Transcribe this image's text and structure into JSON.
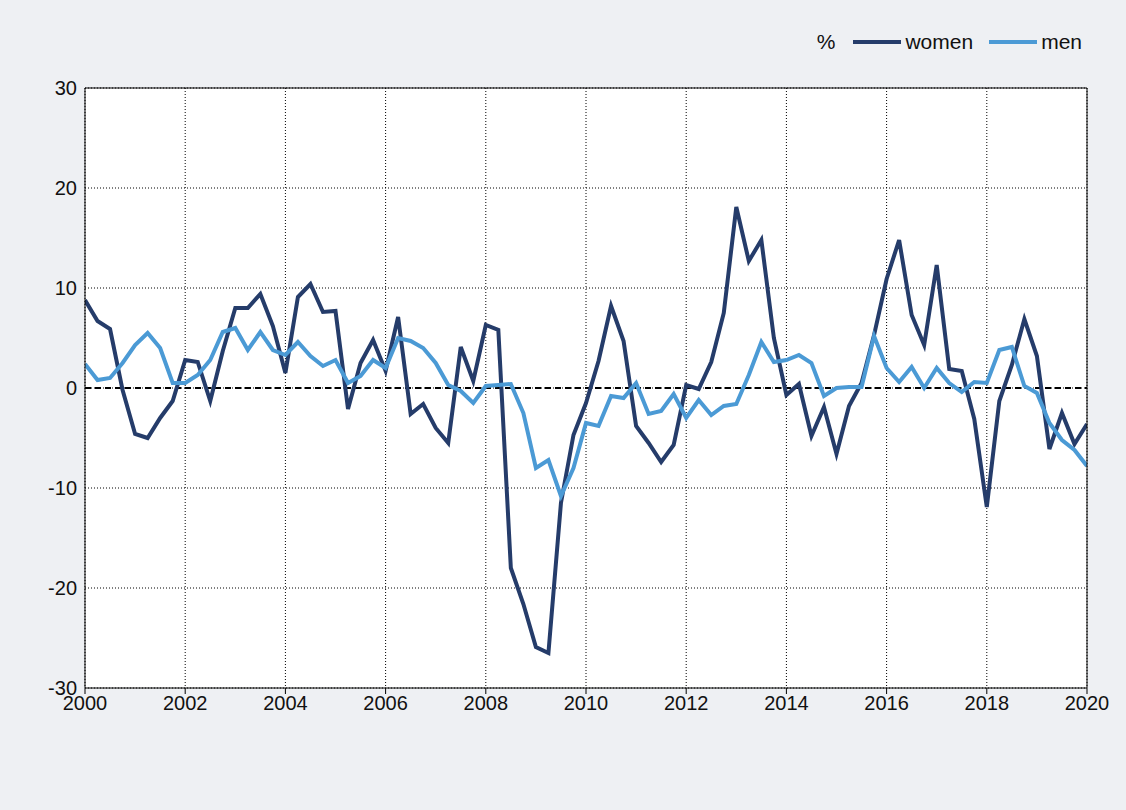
{
  "chart_data": {
    "type": "line",
    "ylabel": "%",
    "legend": "top-right",
    "grid": true,
    "x": [
      2000,
      2000.25,
      2000.5,
      2000.75,
      2001,
      2001.25,
      2001.5,
      2001.75,
      2002,
      2002.25,
      2002.5,
      2002.75,
      2003,
      2003.25,
      2003.5,
      2003.75,
      2004,
      2004.25,
      2004.5,
      2004.75,
      2005,
      2005.25,
      2005.5,
      2005.75,
      2006,
      2006.25,
      2006.5,
      2006.75,
      2007,
      2007.25,
      2007.5,
      2007.75,
      2008,
      2008.25,
      2008.5,
      2008.75,
      2009,
      2009.25,
      2009.5,
      2009.75,
      2010,
      2010.25,
      2010.5,
      2010.75,
      2011,
      2011.25,
      2011.5,
      2011.75,
      2012,
      2012.25,
      2012.5,
      2012.75,
      2013,
      2013.25,
      2013.5,
      2013.75,
      2014,
      2014.25,
      2014.5,
      2014.75,
      2015,
      2015.25,
      2015.5,
      2015.75,
      2016,
      2016.25,
      2016.5,
      2016.75,
      2017,
      2017.25,
      2017.5,
      2017.75,
      2018,
      2018.25,
      2018.5,
      2018.75,
      2019,
      2019.25,
      2019.5,
      2019.75,
      2020
    ],
    "series": [
      {
        "name": "women",
        "color": "#253c6a",
        "values": [
          8.8,
          6.7,
          5.9,
          -0.2,
          -4.6,
          -5.0,
          -3.0,
          -1.3,
          2.8,
          2.6,
          -1.3,
          3.7,
          8.0,
          8.0,
          9.4,
          6.2,
          1.5,
          9.1,
          10.4,
          7.6,
          7.7,
          -2.1,
          2.5,
          4.8,
          1.7,
          7.1,
          -2.6,
          -1.6,
          -4.0,
          -5.5,
          4.1,
          0.7,
          6.3,
          5.8,
          -18.0,
          -21.6,
          -25.9,
          -26.5,
          -11.5,
          -4.7,
          -1.5,
          2.7,
          8.2,
          4.7,
          -3.8,
          -5.5,
          -7.4,
          -5.7,
          0.3,
          -0.1,
          2.6,
          7.5,
          18.1,
          12.7,
          14.8,
          5.0,
          -0.7,
          0.4,
          -4.8,
          -1.9,
          -6.6,
          -1.8,
          0.5,
          5.3,
          10.9,
          14.8,
          7.3,
          4.3,
          12.3,
          1.9,
          1.7,
          -3.1,
          -11.9,
          -1.3,
          2.3,
          6.9,
          3.2,
          -6.1,
          -2.5,
          -5.6,
          -3.6
        ]
      },
      {
        "name": "men",
        "color": "#4b9ad5",
        "values": [
          2.4,
          0.8,
          1.0,
          2.5,
          4.3,
          5.5,
          4.0,
          0.5,
          0.5,
          1.3,
          2.8,
          5.6,
          6.0,
          3.8,
          5.6,
          3.8,
          3.3,
          4.6,
          3.2,
          2.2,
          2.8,
          0.5,
          1.2,
          2.8,
          2.0,
          5.0,
          4.7,
          4.0,
          2.5,
          0.3,
          -0.3,
          -1.5,
          0.2,
          0.3,
          0.4,
          -2.5,
          -8.0,
          -7.2,
          -10.8,
          -8.0,
          -3.5,
          -3.8,
          -0.8,
          -1.0,
          0.5,
          -2.6,
          -2.3,
          -0.6,
          -3.0,
          -1.2,
          -2.7,
          -1.8,
          -1.6,
          1.3,
          4.6,
          2.6,
          2.8,
          3.3,
          2.5,
          -0.8,
          0.0,
          0.1,
          0.1,
          5.2,
          2.0,
          0.6,
          2.1,
          0.0,
          2.0,
          0.5,
          -0.4,
          0.6,
          0.5,
          3.8,
          4.1,
          0.2,
          -0.5,
          -3.5,
          -5.2,
          -6.2,
          -7.8
        ]
      }
    ],
    "xlim": [
      2000,
      2020
    ],
    "xticks": [
      2000,
      2002,
      2004,
      2006,
      2008,
      2010,
      2012,
      2014,
      2016,
      2018,
      2020
    ],
    "ylim": [
      -30,
      30
    ],
    "yticks": [
      -30,
      -20,
      -10,
      0,
      10,
      20,
      30
    ],
    "reference_lines": [
      0
    ]
  }
}
